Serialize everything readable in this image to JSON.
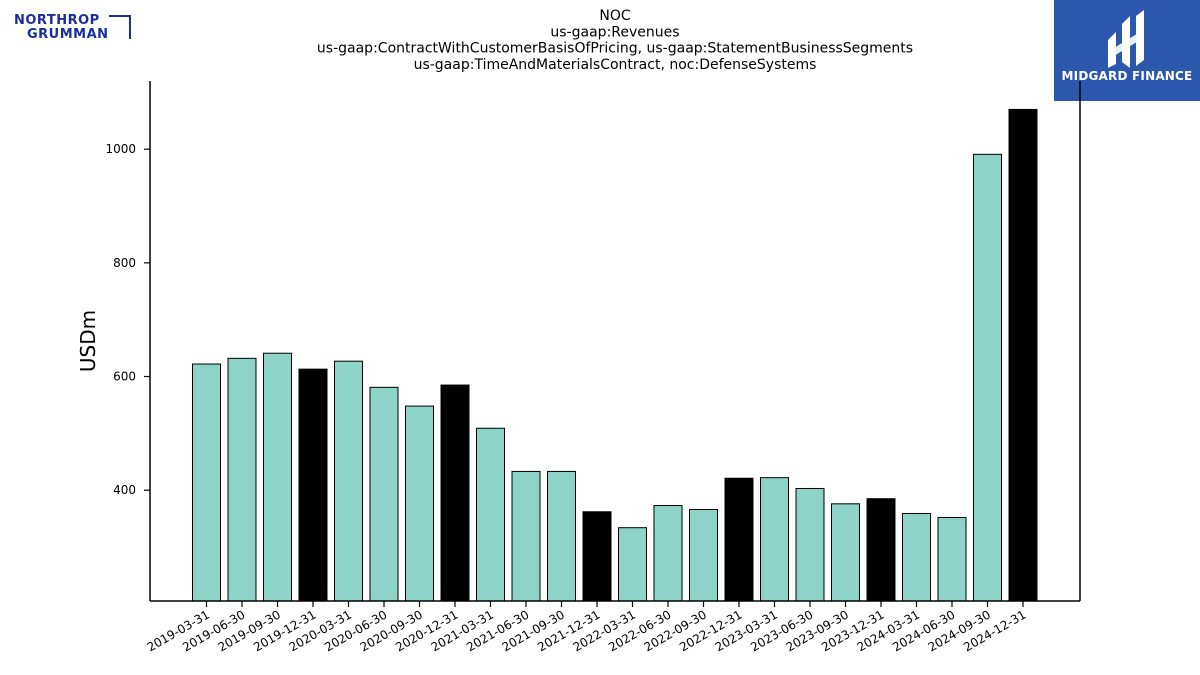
{
  "logos": {
    "left": {
      "line1": "NORTHROP",
      "line2": "GRUMMAN"
    },
    "right": {
      "brand": "MIDGARD FINANCE"
    }
  },
  "colors": {
    "regular": "#8dd3c7",
    "year_end": "#000000",
    "edge": "#000000"
  },
  "chart_data": {
    "type": "bar",
    "title": [
      "NOC",
      "us-gaap:Revenues",
      "us-gaap:ContractWithCustomerBasisOfPricing, us-gaap:StatementBusinessSegments",
      "us-gaap:TimeAndMaterialsContract, noc:DefenseSystems"
    ],
    "ylabel": "USDm",
    "xlabel": "",
    "ylim": [
      205,
      1120
    ],
    "yticks": [
      400,
      600,
      800,
      1000
    ],
    "categories": [
      "2019-03-31",
      "2019-06-30",
      "2019-09-30",
      "2019-12-31",
      "2020-03-31",
      "2020-06-30",
      "2020-09-30",
      "2020-12-31",
      "2021-03-31",
      "2021-06-30",
      "2021-09-30",
      "2021-12-31",
      "2022-03-31",
      "2022-06-30",
      "2022-09-30",
      "2022-12-31",
      "2023-03-31",
      "2023-06-30",
      "2023-09-30",
      "2023-12-31",
      "2024-03-31",
      "2024-06-30",
      "2024-09-30",
      "2024-12-31"
    ],
    "values": [
      622,
      632,
      641,
      613,
      627,
      581,
      548,
      585,
      509,
      433,
      433,
      362,
      334,
      373,
      366,
      421,
      422,
      403,
      376,
      385,
      359,
      352,
      991,
      1070
    ],
    "year_end_highlight": [
      false,
      false,
      false,
      true,
      false,
      false,
      false,
      true,
      false,
      false,
      false,
      true,
      false,
      false,
      false,
      true,
      false,
      false,
      false,
      true,
      false,
      false,
      false,
      true
    ],
    "grid": false,
    "legend": "none"
  }
}
